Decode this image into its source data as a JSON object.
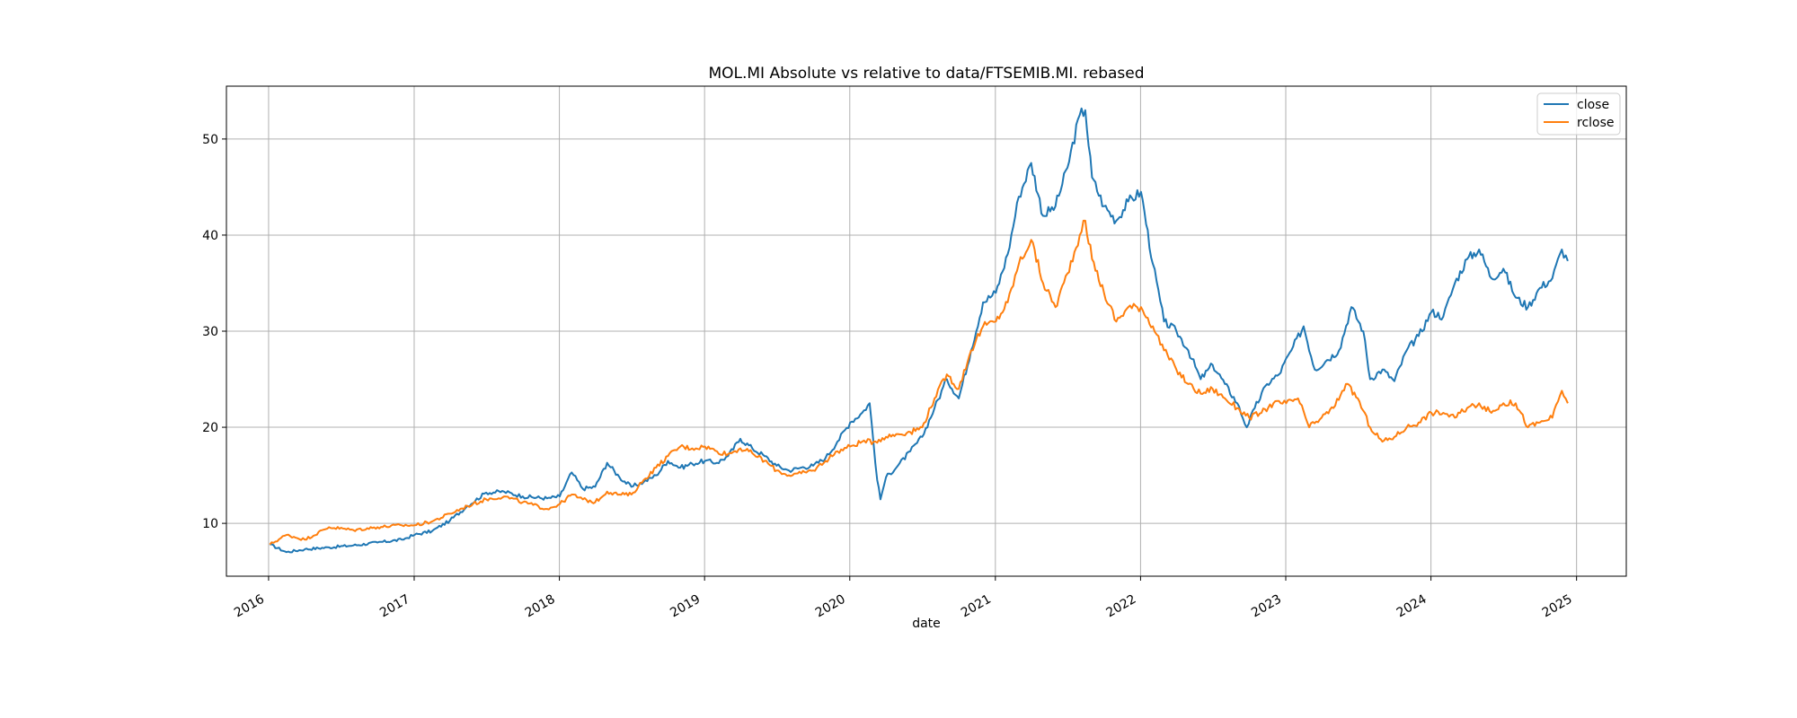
{
  "chart_data": {
    "type": "line",
    "title": "MOL.MI Absolute vs relative to data/FTSEMIB.MI. rebased",
    "xlabel": "date",
    "ylabel": "",
    "x_ticks": [
      "2016",
      "2017",
      "2018",
      "2019",
      "2020",
      "2021",
      "2022",
      "2023",
      "2024",
      "2025"
    ],
    "y_ticks": [
      10,
      20,
      30,
      40,
      50
    ],
    "xlim": [
      "2015-09-17",
      "2025-05-06"
    ],
    "ylim": [
      4.5,
      55.5
    ],
    "grid": true,
    "legend_position": "upper right",
    "series": [
      {
        "name": "close",
        "color": "#1f77b4",
        "points": [
          [
            "2016-01-04",
            7.8
          ],
          [
            "2016-02-15",
            7.0
          ],
          [
            "2016-04-01",
            7.3
          ],
          [
            "2016-06-01",
            7.5
          ],
          [
            "2016-08-01",
            7.7
          ],
          [
            "2016-10-01",
            8.0
          ],
          [
            "2016-12-01",
            8.3
          ],
          [
            "2017-01-02",
            8.8
          ],
          [
            "2017-02-15",
            9.2
          ],
          [
            "2017-04-01",
            10.3
          ],
          [
            "2017-05-15",
            11.8
          ],
          [
            "2017-07-01",
            13.2
          ],
          [
            "2017-08-15",
            13.3
          ],
          [
            "2017-10-01",
            12.8
          ],
          [
            "2017-12-01",
            12.6
          ],
          [
            "2018-01-02",
            12.8
          ],
          [
            "2018-02-01",
            15.3
          ],
          [
            "2018-03-01",
            13.6
          ],
          [
            "2018-04-01",
            13.8
          ],
          [
            "2018-05-01",
            16.3
          ],
          [
            "2018-06-01",
            14.8
          ],
          [
            "2018-07-01",
            13.8
          ],
          [
            "2018-08-01",
            14.3
          ],
          [
            "2018-09-01",
            15.0
          ],
          [
            "2018-10-01",
            16.5
          ],
          [
            "2018-11-01",
            15.8
          ],
          [
            "2018-12-01",
            16.2
          ],
          [
            "2019-01-02",
            16.5
          ],
          [
            "2019-02-01",
            16.3
          ],
          [
            "2019-03-01",
            17.0
          ],
          [
            "2019-04-01",
            18.8
          ],
          [
            "2019-05-01",
            17.8
          ],
          [
            "2019-06-01",
            17.0
          ],
          [
            "2019-07-01",
            16.0
          ],
          [
            "2019-08-01",
            15.5
          ],
          [
            "2019-09-01",
            15.8
          ],
          [
            "2019-10-01",
            16.0
          ],
          [
            "2019-11-01",
            16.8
          ],
          [
            "2019-12-01",
            18.5
          ],
          [
            "2020-01-02",
            20.5
          ],
          [
            "2020-02-01",
            21.5
          ],
          [
            "2020-02-20",
            22.5
          ],
          [
            "2020-03-10",
            14.5
          ],
          [
            "2020-03-18",
            12.5
          ],
          [
            "2020-04-01",
            14.8
          ],
          [
            "2020-05-01",
            16.0
          ],
          [
            "2020-06-01",
            17.5
          ],
          [
            "2020-07-01",
            19.0
          ],
          [
            "2020-08-01",
            22.0
          ],
          [
            "2020-09-01",
            25.0
          ],
          [
            "2020-10-01",
            23.0
          ],
          [
            "2020-11-01",
            28.0
          ],
          [
            "2020-12-01",
            33.0
          ],
          [
            "2021-01-02",
            34.0
          ],
          [
            "2021-02-01",
            38.0
          ],
          [
            "2021-03-01",
            44.0
          ],
          [
            "2021-04-01",
            47.5
          ],
          [
            "2021-05-01",
            42.0
          ],
          [
            "2021-06-01",
            43.0
          ],
          [
            "2021-07-01",
            47.0
          ],
          [
            "2021-08-01",
            52.5
          ],
          [
            "2021-08-15",
            53.0
          ],
          [
            "2021-09-01",
            46.0
          ],
          [
            "2021-10-01",
            43.0
          ],
          [
            "2021-11-01",
            41.5
          ],
          [
            "2021-12-01",
            43.5
          ],
          [
            "2022-01-02",
            44.5
          ],
          [
            "2022-02-01",
            37.0
          ],
          [
            "2022-03-01",
            31.0
          ],
          [
            "2022-04-01",
            30.0
          ],
          [
            "2022-05-01",
            28.0
          ],
          [
            "2022-06-01",
            25.0
          ],
          [
            "2022-07-01",
            26.5
          ],
          [
            "2022-08-01",
            24.5
          ],
          [
            "2022-09-01",
            22.5
          ],
          [
            "2022-09-25",
            20.0
          ],
          [
            "2022-10-15",
            22.0
          ],
          [
            "2022-11-15",
            24.5
          ],
          [
            "2022-12-15",
            25.5
          ],
          [
            "2023-01-15",
            28.0
          ],
          [
            "2023-02-15",
            30.5
          ],
          [
            "2023-03-15",
            26.0
          ],
          [
            "2023-04-15",
            27.0
          ],
          [
            "2023-05-15",
            28.0
          ],
          [
            "2023-06-15",
            32.5
          ],
          [
            "2023-07-15",
            30.0
          ],
          [
            "2023-08-01",
            25.0
          ],
          [
            "2023-09-01",
            26.0
          ],
          [
            "2023-10-01",
            24.8
          ],
          [
            "2023-11-01",
            28.0
          ],
          [
            "2023-12-01",
            29.5
          ],
          [
            "2024-01-02",
            32.0
          ],
          [
            "2024-02-01",
            31.5
          ],
          [
            "2024-03-01",
            35.0
          ],
          [
            "2024-04-01",
            37.5
          ],
          [
            "2024-05-01",
            38.5
          ],
          [
            "2024-06-01",
            35.5
          ],
          [
            "2024-07-01",
            36.5
          ],
          [
            "2024-08-01",
            33.5
          ],
          [
            "2024-09-01",
            32.5
          ],
          [
            "2024-10-01",
            34.5
          ],
          [
            "2024-11-01",
            35.5
          ],
          [
            "2024-11-25",
            38.5
          ],
          [
            "2024-12-10",
            37.3
          ]
        ]
      },
      {
        "name": "rclose",
        "color": "#ff7f0e",
        "points": [
          [
            "2016-01-04",
            7.8
          ],
          [
            "2016-02-15",
            8.8
          ],
          [
            "2016-04-01",
            8.3
          ],
          [
            "2016-06-01",
            9.6
          ],
          [
            "2016-08-01",
            9.3
          ],
          [
            "2016-10-01",
            9.6
          ],
          [
            "2016-12-01",
            9.8
          ],
          [
            "2017-01-02",
            9.8
          ],
          [
            "2017-02-15",
            10.2
          ],
          [
            "2017-04-01",
            11.0
          ],
          [
            "2017-05-15",
            11.8
          ],
          [
            "2017-07-01",
            12.5
          ],
          [
            "2017-08-15",
            12.8
          ],
          [
            "2017-10-01",
            12.2
          ],
          [
            "2017-12-01",
            11.5
          ],
          [
            "2018-01-02",
            12.0
          ],
          [
            "2018-02-01",
            13.0
          ],
          [
            "2018-03-01",
            12.5
          ],
          [
            "2018-04-01",
            12.2
          ],
          [
            "2018-05-01",
            13.3
          ],
          [
            "2018-06-01",
            13.0
          ],
          [
            "2018-07-01",
            13.0
          ],
          [
            "2018-08-01",
            14.5
          ],
          [
            "2018-09-01",
            15.8
          ],
          [
            "2018-10-01",
            17.0
          ],
          [
            "2018-11-01",
            18.0
          ],
          [
            "2018-12-01",
            17.8
          ],
          [
            "2019-01-02",
            18.0
          ],
          [
            "2019-02-01",
            17.5
          ],
          [
            "2019-03-01",
            17.2
          ],
          [
            "2019-04-01",
            17.8
          ],
          [
            "2019-05-01",
            17.3
          ],
          [
            "2019-06-01",
            16.5
          ],
          [
            "2019-07-01",
            15.5
          ],
          [
            "2019-08-01",
            15.0
          ],
          [
            "2019-09-01",
            15.2
          ],
          [
            "2019-10-01",
            15.5
          ],
          [
            "2019-11-01",
            16.5
          ],
          [
            "2019-12-01",
            17.5
          ],
          [
            "2020-01-02",
            18.0
          ],
          [
            "2020-02-01",
            18.5
          ],
          [
            "2020-03-01",
            18.5
          ],
          [
            "2020-04-01",
            19.0
          ],
          [
            "2020-05-01",
            19.3
          ],
          [
            "2020-06-01",
            19.5
          ],
          [
            "2020-07-01",
            20.0
          ],
          [
            "2020-08-01",
            23.0
          ],
          [
            "2020-09-01",
            25.5
          ],
          [
            "2020-10-01",
            24.0
          ],
          [
            "2020-11-01",
            28.0
          ],
          [
            "2020-12-01",
            30.5
          ],
          [
            "2021-01-02",
            31.0
          ],
          [
            "2021-02-01",
            33.0
          ],
          [
            "2021-03-01",
            37.0
          ],
          [
            "2021-04-01",
            39.5
          ],
          [
            "2021-05-01",
            35.0
          ],
          [
            "2021-06-01",
            32.5
          ],
          [
            "2021-07-01",
            36.0
          ],
          [
            "2021-08-01",
            40.0
          ],
          [
            "2021-08-15",
            41.5
          ],
          [
            "2021-09-01",
            37.5
          ],
          [
            "2021-10-01",
            34.0
          ],
          [
            "2021-11-01",
            31.0
          ],
          [
            "2021-12-01",
            32.5
          ],
          [
            "2022-01-02",
            32.5
          ],
          [
            "2022-02-01",
            30.5
          ],
          [
            "2022-03-01",
            28.0
          ],
          [
            "2022-04-01",
            26.0
          ],
          [
            "2022-05-01",
            24.5
          ],
          [
            "2022-06-01",
            23.5
          ],
          [
            "2022-07-01",
            24.0
          ],
          [
            "2022-08-01",
            23.0
          ],
          [
            "2022-09-01",
            22.0
          ],
          [
            "2022-10-01",
            21.0
          ],
          [
            "2022-11-01",
            21.5
          ],
          [
            "2022-12-01",
            22.5
          ],
          [
            "2023-01-02",
            22.5
          ],
          [
            "2023-02-01",
            23.0
          ],
          [
            "2023-03-01",
            20.0
          ],
          [
            "2023-04-01",
            21.0
          ],
          [
            "2023-05-01",
            22.0
          ],
          [
            "2023-06-01",
            24.5
          ],
          [
            "2023-07-01",
            23.0
          ],
          [
            "2023-08-01",
            20.0
          ],
          [
            "2023-09-01",
            18.5
          ],
          [
            "2023-10-01",
            19.0
          ],
          [
            "2023-11-01",
            20.0
          ],
          [
            "2023-12-01",
            20.5
          ],
          [
            "2024-01-02",
            21.5
          ],
          [
            "2024-02-01",
            21.5
          ],
          [
            "2024-03-01",
            21.0
          ],
          [
            "2024-04-01",
            22.0
          ],
          [
            "2024-05-01",
            22.5
          ],
          [
            "2024-06-01",
            21.5
          ],
          [
            "2024-07-01",
            22.5
          ],
          [
            "2024-08-01",
            22.5
          ],
          [
            "2024-09-01",
            20.0
          ],
          [
            "2024-10-01",
            20.5
          ],
          [
            "2024-11-01",
            21.0
          ],
          [
            "2024-11-25",
            23.8
          ],
          [
            "2024-12-10",
            22.5
          ]
        ]
      }
    ]
  }
}
